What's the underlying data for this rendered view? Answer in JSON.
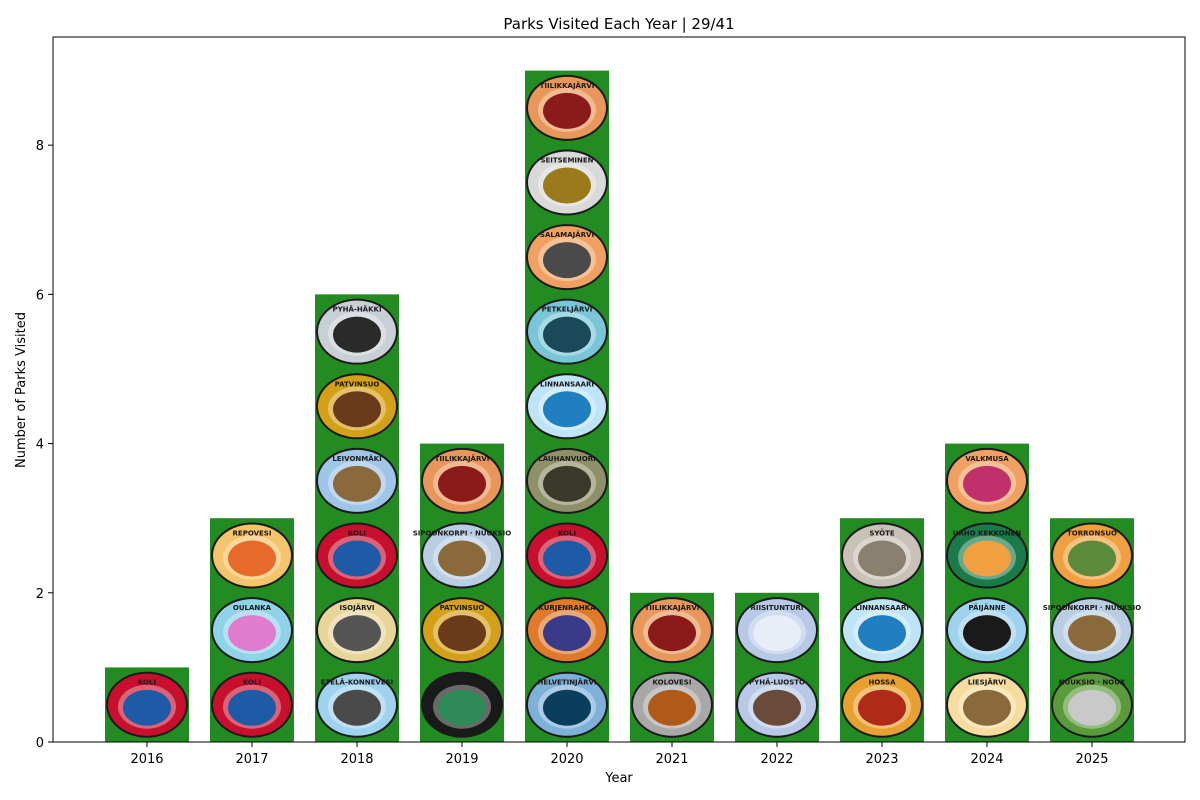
{
  "chart_data": {
    "type": "bar",
    "title": "Parks Visited Each Year | 29/41",
    "xlabel": "Year",
    "ylabel": "Number of Parks Visited",
    "categories": [
      "2016",
      "2017",
      "2018",
      "2019",
      "2020",
      "2021",
      "2022",
      "2023",
      "2024",
      "2025"
    ],
    "values": [
      1,
      3,
      6,
      4,
      9,
      2,
      2,
      3,
      4,
      3
    ],
    "ylim": [
      0,
      9.45
    ],
    "yticks": [
      0,
      2,
      4,
      6,
      8
    ],
    "grid": false,
    "bar_color": "#228b22",
    "badges": [
      [
        {
          "name": "KOLI",
          "color": "#c8102e",
          "inner": "#1f5aa6"
        }
      ],
      [
        {
          "name": "KOLI",
          "color": "#c8102e",
          "inner": "#1f5aa6"
        },
        {
          "name": "OULANKA",
          "color": "#8fd3e8",
          "inner": "#e07bd0"
        },
        {
          "name": "REPOVESI",
          "color": "#f6c46b",
          "inner": "#e86a2a"
        }
      ],
      [
        {
          "name": "EТЕLÄ-KONNEVESI",
          "color": "#9fd2ef",
          "inner": "#4a4a4a"
        },
        {
          "name": "ISOJÄRVI",
          "color": "#e8d59a",
          "inner": "#555555"
        },
        {
          "name": "KOLI",
          "color": "#c8102e",
          "inner": "#1f5aa6"
        },
        {
          "name": "LEIVONMÄKI",
          "color": "#9fc5e8",
          "inner": "#8a6a3a"
        },
        {
          "name": "PATVINSUO",
          "color": "#d4a017",
          "inner": "#6b3a1a"
        },
        {
          "name": "PYHÄ-HÄKKI",
          "color": "#c9cfd6",
          "inner": "#2a2a2a"
        }
      ],
      [
        {
          "name": "HIIDENPORTTI",
          "color": "#1a1a1a",
          "inner": "#2e8b57"
        },
        {
          "name": "PATVINSUO",
          "color": "#d4a017",
          "inner": "#6b3a1a"
        },
        {
          "name": "SIPOONKORPI · NUUKSIO",
          "color": "#b9cde3",
          "inner": "#8a6a3a"
        },
        {
          "name": "TIILIKKAJÄRVI",
          "color": "#e8965a",
          "inner": "#8b1a1a"
        }
      ],
      [
        {
          "name": "HELVETINJÄRVI",
          "color": "#7fb0d9",
          "inner": "#0b3d5c"
        },
        {
          "name": "KURJENRAHKA",
          "color": "#e07a2a",
          "inner": "#3a3a8a"
        },
        {
          "name": "KOLI",
          "color": "#c8102e",
          "inner": "#1f5aa6"
        },
        {
          "name": "LAUHANVUORI",
          "color": "#8f8f6a",
          "inner": "#3a3a2a"
        },
        {
          "name": "LINNANSAARI",
          "color": "#bfe3f7",
          "inner": "#1f7fc0"
        },
        {
          "name": "PETKELJÄRVI",
          "color": "#7ac6d8",
          "inner": "#1a4a5a"
        },
        {
          "name": "SALAMAJÄRVI",
          "color": "#f0a060",
          "inner": "#4a4a4a"
        },
        {
          "name": "SEITSEMINEN",
          "color": "#d9d9d9",
          "inner": "#9a7a1a"
        },
        {
          "name": "TIILIKKAJÄRVI",
          "color": "#e8965a",
          "inner": "#8b1a1a"
        }
      ],
      [
        {
          "name": "KOLOVESI",
          "color": "#a8a8a8",
          "inner": "#b05a1a"
        },
        {
          "name": "TIILIKKAJÄRVI",
          "color": "#e8965a",
          "inner": "#8b1a1a"
        }
      ],
      [
        {
          "name": "PYHÄ-LUOSTO",
          "color": "#b7c9e6",
          "inner": "#6a4a3a"
        },
        {
          "name": "RIISITUNTURI",
          "color": "#b7c9e6",
          "inner": "#e8eef7"
        }
      ],
      [
        {
          "name": "HOSSA",
          "color": "#e8a030",
          "inner": "#b02a1a"
        },
        {
          "name": "LINNANSAARI",
          "color": "#bfe3f7",
          "inner": "#1f7fc0"
        },
        {
          "name": "SYÖTE",
          "color": "#c9c0b8",
          "inner": "#8a8070"
        }
      ],
      [
        {
          "name": "LIESJÄRVI",
          "color": "#f7dca0",
          "inner": "#8a6a3a"
        },
        {
          "name": "PÄIJÄNNE",
          "color": "#9fd2ef",
          "inner": "#1a1a1a"
        },
        {
          "name": "URHO KEKKONEN",
          "color": "#1a7a4a",
          "inner": "#f0a040"
        },
        {
          "name": "VALKMUSA",
          "color": "#f0a060",
          "inner": "#c0306a"
        }
      ],
      [
        {
          "name": "NUUKSIO · NOUX",
          "color": "#5a9a3a",
          "inner": "#c9c9c9"
        },
        {
          "name": "SIPOONKORPI · NUUKSIO",
          "color": "#b9cde3",
          "inner": "#8a6a3a"
        },
        {
          "name": "TORRONSUO",
          "color": "#f0a040",
          "inner": "#5a8a3a"
        }
      ]
    ]
  }
}
